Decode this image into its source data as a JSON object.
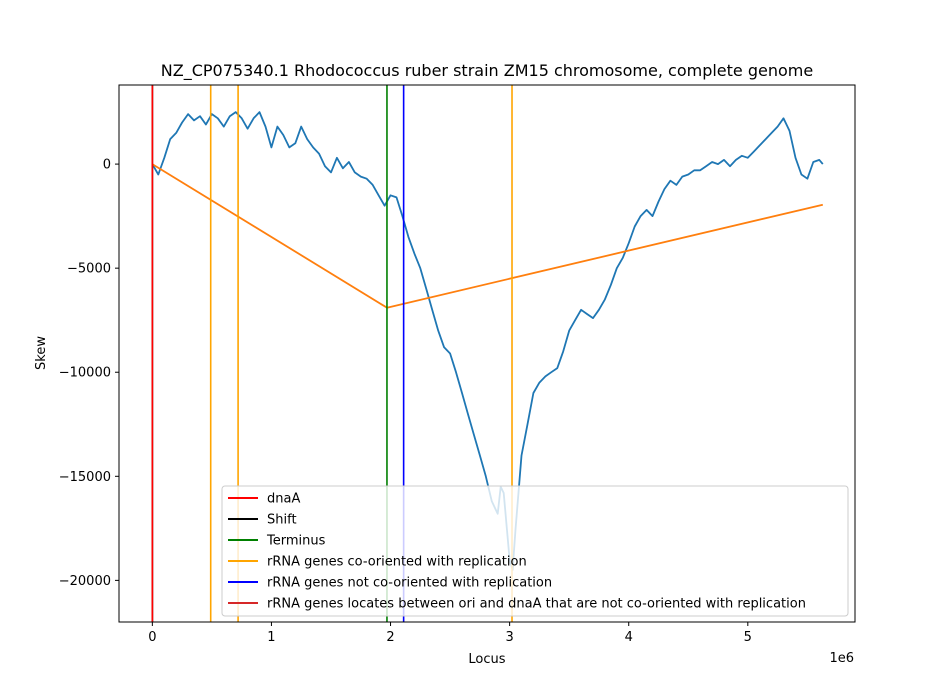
{
  "chart_data": {
    "type": "line",
    "title": "NZ_CP075340.1 Rhodococcus ruber strain ZM15 chromosome, complete genome",
    "xlabel": "Locus",
    "ylabel": "Skew",
    "x_offset_label": "1e6",
    "xlim": [
      -280000,
      5900000
    ],
    "ylim": [
      -22000,
      3800
    ],
    "x_ticks": [
      0,
      1000000,
      2000000,
      3000000,
      4000000,
      5000000
    ],
    "x_tick_labels": [
      "0",
      "1",
      "2",
      "3",
      "4",
      "5"
    ],
    "y_ticks": [
      0,
      -5000,
      -10000,
      -15000,
      -20000
    ],
    "y_tick_labels": [
      "0",
      "−5000",
      "−10000",
      "−15000",
      "−20000"
    ],
    "grid": false,
    "legend_position": "bottom-right",
    "series": [
      {
        "color": "#1f77b4",
        "x": [
          0,
          50000,
          100000,
          150000,
          200000,
          250000,
          300000,
          350000,
          400000,
          450000,
          500000,
          550000,
          600000,
          650000,
          700000,
          750000,
          800000,
          850000,
          900000,
          950000,
          1000000,
          1050000,
          1100000,
          1150000,
          1200000,
          1250000,
          1300000,
          1350000,
          1400000,
          1450000,
          1500000,
          1550000,
          1600000,
          1650000,
          1700000,
          1750000,
          1800000,
          1850000,
          1900000,
          1950000,
          2000000,
          2050000,
          2100000,
          2150000,
          2200000,
          2250000,
          2300000,
          2350000,
          2400000,
          2450000,
          2500000,
          2550000,
          2600000,
          2650000,
          2700000,
          2750000,
          2800000,
          2850000,
          2900000,
          2925000,
          2950000,
          3000000,
          3025000,
          3050000,
          3100000,
          3150000,
          3200000,
          3250000,
          3300000,
          3350000,
          3400000,
          3450000,
          3500000,
          3550000,
          3600000,
          3650000,
          3700000,
          3750000,
          3800000,
          3850000,
          3900000,
          3950000,
          4000000,
          4050000,
          4100000,
          4150000,
          4200000,
          4250000,
          4300000,
          4350000,
          4400000,
          4450000,
          4500000,
          4550000,
          4600000,
          4650000,
          4700000,
          4750000,
          4800000,
          4850000,
          4900000,
          4950000,
          5000000,
          5050000,
          5100000,
          5150000,
          5200000,
          5250000,
          5300000,
          5350000,
          5400000,
          5450000,
          5500000,
          5550000,
          5600000,
          5630000
        ],
        "y": [
          0,
          -500,
          300,
          1200,
          1500,
          2000,
          2400,
          2100,
          2300,
          1900,
          2400,
          2200,
          1800,
          2300,
          2500,
          2200,
          1700,
          2200,
          2500,
          1800,
          800,
          1800,
          1400,
          800,
          1000,
          1800,
          1200,
          800,
          500,
          -100,
          -400,
          300,
          -200,
          100,
          -400,
          -600,
          -700,
          -1000,
          -1500,
          -2000,
          -1500,
          -1600,
          -2500,
          -3500,
          -4300,
          -5000,
          -6000,
          -7000,
          -8000,
          -8800,
          -9100,
          -10000,
          -11000,
          -12000,
          -13000,
          -14000,
          -15000,
          -16200,
          -16800,
          -15500,
          -15800,
          -19000,
          -19500,
          -17500,
          -14000,
          -12500,
          -11000,
          -10500,
          -10200,
          -10000,
          -9800,
          -9000,
          -8000,
          -7500,
          -7000,
          -7200,
          -7400,
          -7000,
          -6500,
          -5800,
          -5000,
          -4500,
          -3800,
          -3000,
          -2500,
          -2200,
          -2500,
          -1800,
          -1200,
          -800,
          -1000,
          -600,
          -500,
          -300,
          -300,
          -100,
          100,
          0,
          200,
          -100,
          200,
          400,
          300,
          600,
          900,
          1200,
          1500,
          1800,
          2200,
          1600,
          300,
          -500,
          -700,
          100,
          200,
          0
        ]
      },
      {
        "color": "#ff7f0e",
        "x": [
          0,
          1970000,
          5630000
        ],
        "y": [
          0,
          -6900,
          -1950
        ]
      }
    ],
    "vlines": [
      {
        "x": 0,
        "color": "#d62728"
      },
      {
        "x": 0,
        "color": "#000000"
      },
      {
        "x": 1970000,
        "color": "#008000"
      },
      {
        "x": 490000,
        "color": "#ffa500"
      },
      {
        "x": 720000,
        "color": "#ffa500"
      },
      {
        "x": 3020000,
        "color": "#ffa500"
      },
      {
        "x": 2110000,
        "color": "#0000ff"
      },
      {
        "x": 0,
        "color": "#ff0000"
      }
    ],
    "legend": [
      {
        "label": "dnaA",
        "color": "#ff0000"
      },
      {
        "label": "Shift",
        "color": "#000000"
      },
      {
        "label": "Terminus",
        "color": "#008000"
      },
      {
        "label": "rRNA genes co-oriented with replication",
        "color": "#ffa500"
      },
      {
        "label": "rRNA genes not co-oriented with replication",
        "color": "#0000ff"
      },
      {
        "label": "rRNA genes locates between ori and dnaA that are not co-oriented with replication",
        "color": "#d62728"
      }
    ]
  }
}
